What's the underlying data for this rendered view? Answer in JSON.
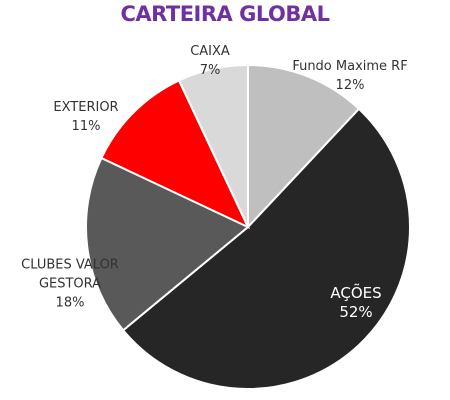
{
  "chart_data": {
    "type": "pie",
    "title": "CARTEIRA GLOBAL",
    "categories": [
      "Fundo Maxime RF",
      "AÇÕES",
      "CLUBES VALOR GESTORA",
      "EXTERIOR",
      "CAIXA"
    ],
    "values": [
      12,
      52,
      18,
      11,
      7
    ],
    "value_labels": [
      "12%",
      "52%",
      "18%",
      "11%",
      "7%"
    ],
    "colors": [
      "#bfbfbf",
      "#262626",
      "#595959",
      "#ff0000",
      "#d9d9d9"
    ]
  }
}
